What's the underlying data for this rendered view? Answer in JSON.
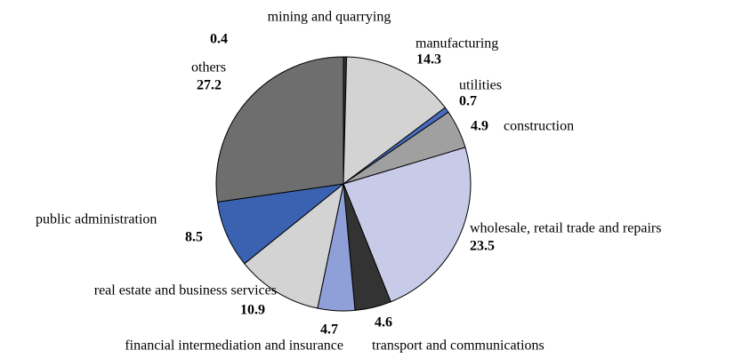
{
  "chart_data": {
    "type": "pie",
    "categories": [
      "mining and quarrying",
      "manufacturing",
      "utilities",
      "construction",
      "wholesale, retail trade and repairs",
      "transport and communications",
      "financial intermediation and insurance",
      "real estate and business services",
      "public administration",
      "others"
    ],
    "values": [
      0.4,
      14.3,
      0.7,
      4.9,
      23.5,
      4.6,
      4.7,
      10.9,
      8.5,
      27.2
    ],
    "colors": [
      "#333333",
      "#d3d3d3",
      "#4a6cc0",
      "#a0a0a0",
      "#c7cbe8",
      "#333333",
      "#8f9fd8",
      "#d3d3d3",
      "#3a62b0",
      "#6e6e6e"
    ]
  }
}
